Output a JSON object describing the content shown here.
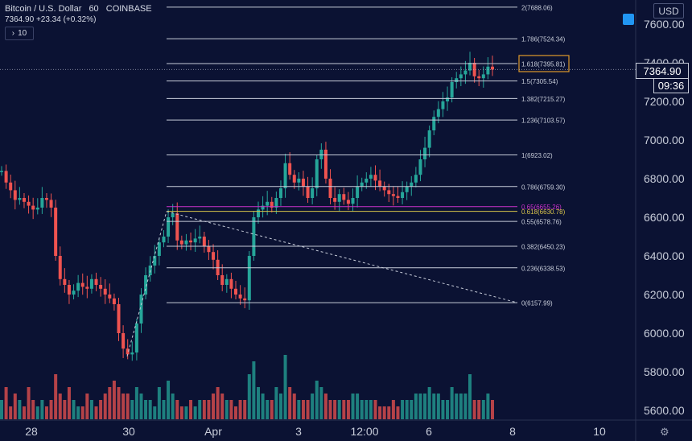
{
  "header": {
    "symbol": "Bitcoin / U.S. Dollar",
    "interval": "60",
    "exchange": "COINBASE",
    "last": "7364.90",
    "change": "+23.34 (+0.32%)",
    "indicator_count": "10"
  },
  "currency_label": "USD",
  "price_label": "7364.90",
  "time_label": "09:36",
  "colors": {
    "up": "#26a69a",
    "down": "#ef5350",
    "fib_line": "#c7ccd9",
    "golden": "#d6c24a",
    "pocket": "#cc33cc",
    "highlight": "#e09a2c",
    "background": "#0b1233"
  },
  "chart_data": {
    "type": "candlestick",
    "y_ticks": [
      5600,
      5800,
      6000,
      6200,
      6400,
      6600,
      6800,
      7000,
      7200,
      7400,
      7600
    ],
    "ylim": [
      5540,
      7720
    ],
    "x_ticks": [
      "28",
      "30",
      "Apr",
      "3",
      "12:00",
      "6",
      "8",
      "10"
    ],
    "fib_levels": [
      {
        "ratio": "2",
        "price": 7688.06,
        "label": "2(7688.06)"
      },
      {
        "ratio": "1.786",
        "price": 7524.34,
        "label": "1.786(7524.34)"
      },
      {
        "ratio": "1.618",
        "price": 7395.81,
        "label": "1.618(7395.81)"
      },
      {
        "ratio": "1.5",
        "price": 7305.54,
        "label": "1.5(7305.54)"
      },
      {
        "ratio": "1.382",
        "price": 7215.27,
        "label": "1.382(7215.27)"
      },
      {
        "ratio": "1.236",
        "price": 7103.57,
        "label": "1.236(7103.57)"
      },
      {
        "ratio": "1",
        "price": 6923.02,
        "label": "1(6923.02)"
      },
      {
        "ratio": "0.786",
        "price": 6759.3,
        "label": "0.786(6759.30)"
      },
      {
        "ratio": "0.65",
        "price": 6655.26,
        "label": "0.65(6655.26)"
      },
      {
        "ratio": "0.618",
        "price": 6630.78,
        "label": "0.618(6630.78)"
      },
      {
        "ratio": "0.55",
        "price": 6578.76,
        "label": "0.55(6578.76)"
      },
      {
        "ratio": "0.382",
        "price": 6450.23,
        "label": "0.382(6450.23)"
      },
      {
        "ratio": "0.236",
        "price": 6338.53,
        "label": "0.236(6338.53)"
      },
      {
        "ratio": "0",
        "price": 6157.99,
        "label": "0(6157.99)"
      }
    ],
    "series_path": [
      6840,
      6780,
      6740,
      6690,
      6700,
      6680,
      6660,
      6640,
      6650,
      6700,
      6690,
      6650,
      6400,
      6280,
      6250,
      6200,
      6220,
      6260,
      6240,
      6230,
      6280,
      6250,
      6230,
      6200,
      6180,
      6150,
      6000,
      5920,
      5890,
      5900,
      6050,
      6200,
      6300,
      6350,
      6400,
      6470,
      6500,
      6600,
      6620,
      6480,
      6460,
      6480,
      6470,
      6490,
      6500,
      6450,
      6420,
      6380,
      6300,
      6250,
      6280,
      6230,
      6200,
      6180,
      6170,
      6400,
      6600,
      6640,
      6660,
      6680,
      6650,
      6700,
      6750,
      6880,
      6820,
      6780,
      6800,
      6760,
      6700,
      6750,
      6900,
      6950,
      6800,
      6700,
      6680,
      6720,
      6690,
      6670,
      6700,
      6760,
      6780,
      6800,
      6820,
      6790,
      6760,
      6740,
      6720,
      6710,
      6700,
      6730,
      6760,
      6780,
      6820,
      6900,
      6960,
      7050,
      7120,
      7160,
      7200,
      7220,
      7300,
      7320,
      7340,
      7360,
      7400,
      7330,
      7320,
      7340,
      7380,
      7365
    ],
    "volume_rel": [
      0.3,
      0.5,
      0.2,
      0.4,
      0.3,
      0.2,
      0.5,
      0.3,
      0.2,
      0.3,
      0.2,
      0.3,
      0.7,
      0.4,
      0.3,
      0.5,
      0.3,
      0.2,
      0.2,
      0.4,
      0.3,
      0.2,
      0.3,
      0.4,
      0.5,
      0.6,
      0.5,
      0.4,
      0.4,
      0.3,
      0.5,
      0.4,
      0.3,
      0.3,
      0.2,
      0.5,
      0.3,
      0.6,
      0.4,
      0.3,
      0.2,
      0.2,
      0.3,
      0.2,
      0.3,
      0.3,
      0.3,
      0.4,
      0.5,
      0.4,
      0.3,
      0.3,
      0.2,
      0.3,
      0.3,
      0.7,
      0.9,
      0.5,
      0.4,
      0.3,
      0.3,
      0.5,
      0.4,
      1.0,
      0.5,
      0.4,
      0.3,
      0.3,
      0.3,
      0.4,
      0.6,
      0.5,
      0.4,
      0.3,
      0.3,
      0.3,
      0.3,
      0.3,
      0.4,
      0.4,
      0.3,
      0.3,
      0.3,
      0.3,
      0.2,
      0.2,
      0.2,
      0.3,
      0.2,
      0.3,
      0.3,
      0.3,
      0.4,
      0.4,
      0.4,
      0.5,
      0.4,
      0.4,
      0.3,
      0.3,
      0.5,
      0.4,
      0.4,
      0.4,
      0.7,
      0.3,
      0.3,
      0.3,
      0.4,
      0.3
    ]
  }
}
